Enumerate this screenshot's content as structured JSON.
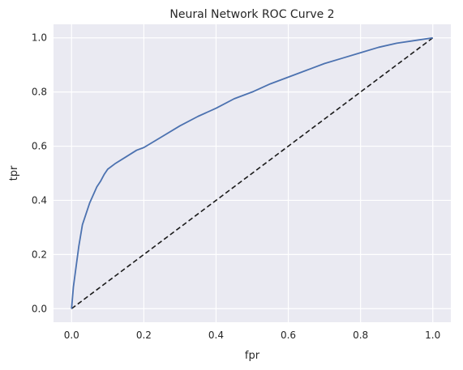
{
  "chart_data": {
    "type": "line",
    "title": "Neural Network ROC Curve 2",
    "xlabel": "fpr",
    "ylabel": "tpr",
    "xlim": [
      -0.05,
      1.05
    ],
    "ylim": [
      -0.05,
      1.05
    ],
    "xticks": [
      "0.0",
      "0.2",
      "0.4",
      "0.6",
      "0.8",
      "1.0"
    ],
    "yticks": [
      "0.0",
      "0.2",
      "0.4",
      "0.6",
      "0.8",
      "1.0"
    ],
    "grid": true,
    "background_color": "#eaeaf2",
    "series": [
      {
        "style": "solid",
        "color": "#4c72b0",
        "x": [
          0.0,
          0.005,
          0.01,
          0.02,
          0.03,
          0.04,
          0.05,
          0.06,
          0.07,
          0.08,
          0.09,
          0.1,
          0.12,
          0.15,
          0.18,
          0.2,
          0.25,
          0.3,
          0.35,
          0.4,
          0.45,
          0.5,
          0.55,
          0.6,
          0.65,
          0.7,
          0.75,
          0.8,
          0.85,
          0.9,
          0.95,
          1.0
        ],
        "y": [
          0.0,
          0.08,
          0.13,
          0.23,
          0.31,
          0.35,
          0.39,
          0.42,
          0.45,
          0.47,
          0.495,
          0.515,
          0.535,
          0.56,
          0.585,
          0.595,
          0.635,
          0.675,
          0.71,
          0.74,
          0.775,
          0.8,
          0.83,
          0.855,
          0.88,
          0.905,
          0.925,
          0.945,
          0.965,
          0.98,
          0.99,
          1.0
        ]
      },
      {
        "style": "dashed",
        "color": "#1a1a1a",
        "x": [
          0.0,
          1.0
        ],
        "y": [
          0.0,
          1.0
        ]
      }
    ]
  }
}
